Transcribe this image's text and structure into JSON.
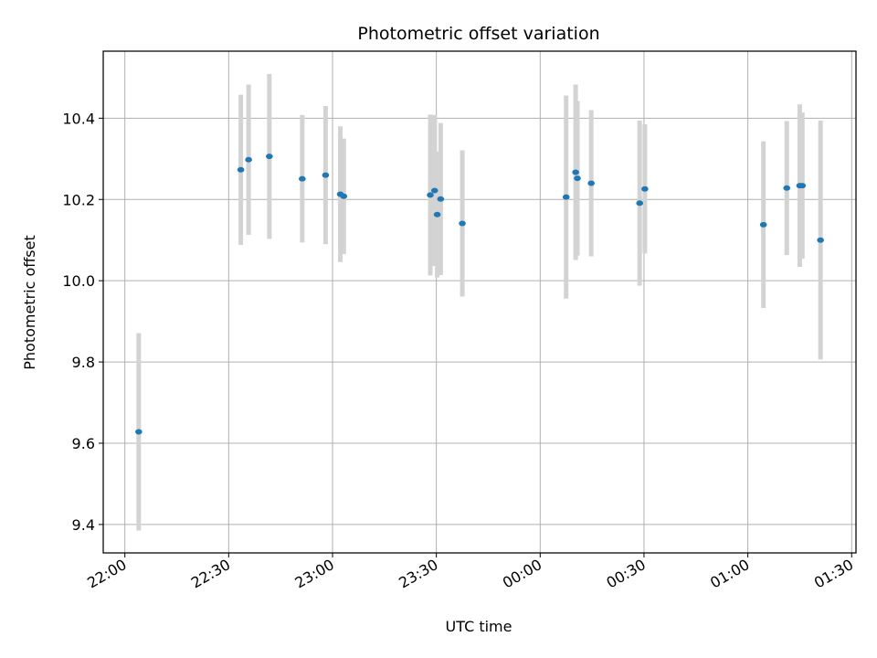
{
  "chart_data": {
    "type": "scatter",
    "title": "Photometric offset variation",
    "xlabel": "UTC time",
    "ylabel": "Photometric offset",
    "x_ticks": [
      "22:00",
      "22:30",
      "23:00",
      "23:30",
      "00:00",
      "00:30",
      "01:00",
      "01:30"
    ],
    "y_ticks": [
      "9.4",
      "9.6",
      "9.8",
      "10.0",
      "10.2",
      "10.4"
    ],
    "xlim": [
      "21:53:45",
      "01:31:15"
    ],
    "ylim": [
      9.33,
      10.565
    ],
    "grid": true,
    "marker_color": "#1f77b4",
    "errorbar_color": "#d3d3d3",
    "points": [
      {
        "x": "22:04:00",
        "y": 9.628,
        "err": 0.243
      },
      {
        "x": "22:33:30",
        "y": 10.273,
        "err": 0.185
      },
      {
        "x": "22:35:45",
        "y": 10.298,
        "err": 0.185
      },
      {
        "x": "22:41:45",
        "y": 10.306,
        "err": 0.203
      },
      {
        "x": "22:51:15",
        "y": 10.251,
        "err": 0.157
      },
      {
        "x": "22:58:00",
        "y": 10.26,
        "err": 0.17
      },
      {
        "x": "23:02:15",
        "y": 10.213,
        "err": 0.167
      },
      {
        "x": "23:03:15",
        "y": 10.208,
        "err": 0.142
      },
      {
        "x": "23:28:15",
        "y": 10.211,
        "err": 0.198
      },
      {
        "x": "23:29:30",
        "y": 10.222,
        "err": 0.186
      },
      {
        "x": "23:30:15",
        "y": 10.163,
        "err": 0.155
      },
      {
        "x": "23:31:15",
        "y": 10.201,
        "err": 0.187
      },
      {
        "x": "23:37:30",
        "y": 10.141,
        "err": 0.18
      },
      {
        "x": "00:07:30",
        "y": 10.206,
        "err": 0.25
      },
      {
        "x": "00:10:15",
        "y": 10.267,
        "err": 0.216
      },
      {
        "x": "00:10:45",
        "y": 10.252,
        "err": 0.19
      },
      {
        "x": "00:14:45",
        "y": 10.24,
        "err": 0.18
      },
      {
        "x": "00:28:45",
        "y": 10.191,
        "err": 0.203
      },
      {
        "x": "00:30:15",
        "y": 10.226,
        "err": 0.159
      },
      {
        "x": "01:04:30",
        "y": 10.138,
        "err": 0.205
      },
      {
        "x": "01:11:15",
        "y": 10.228,
        "err": 0.165
      },
      {
        "x": "01:15:00",
        "y": 10.234,
        "err": 0.2
      },
      {
        "x": "01:15:45",
        "y": 10.234,
        "err": 0.18
      },
      {
        "x": "01:21:00",
        "y": 10.1,
        "err": 0.294
      }
    ]
  }
}
